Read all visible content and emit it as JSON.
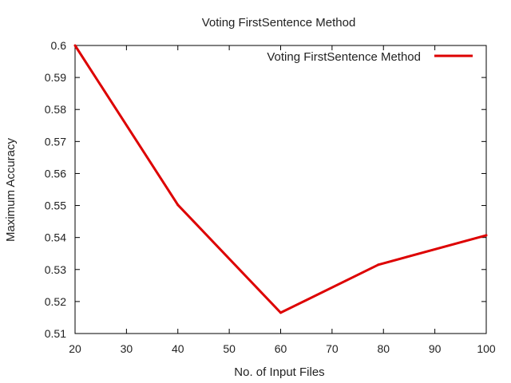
{
  "chart_data": {
    "type": "line",
    "title": "Voting FirstSentence Method",
    "xlabel": "No. of Input Files",
    "ylabel": "Maximum Accuracy",
    "xlim": [
      20,
      100
    ],
    "ylim": [
      0.51,
      0.6
    ],
    "xticks": [
      "20",
      "30",
      "40",
      "50",
      "60",
      "70",
      "80",
      "90",
      "100"
    ],
    "yticks": [
      "0.51",
      "0.52",
      "0.53",
      "0.54",
      "0.55",
      "0.56",
      "0.57",
      "0.58",
      "0.59",
      "0.6"
    ],
    "grid": false,
    "legend_position": "top-right",
    "series": [
      {
        "name": "Voting FirstSentence Method",
        "color": "#dd0000",
        "x": [
          20,
          40,
          60,
          79,
          100
        ],
        "y": [
          0.6,
          0.5502,
          0.5165,
          0.5315,
          0.5407
        ]
      }
    ]
  }
}
